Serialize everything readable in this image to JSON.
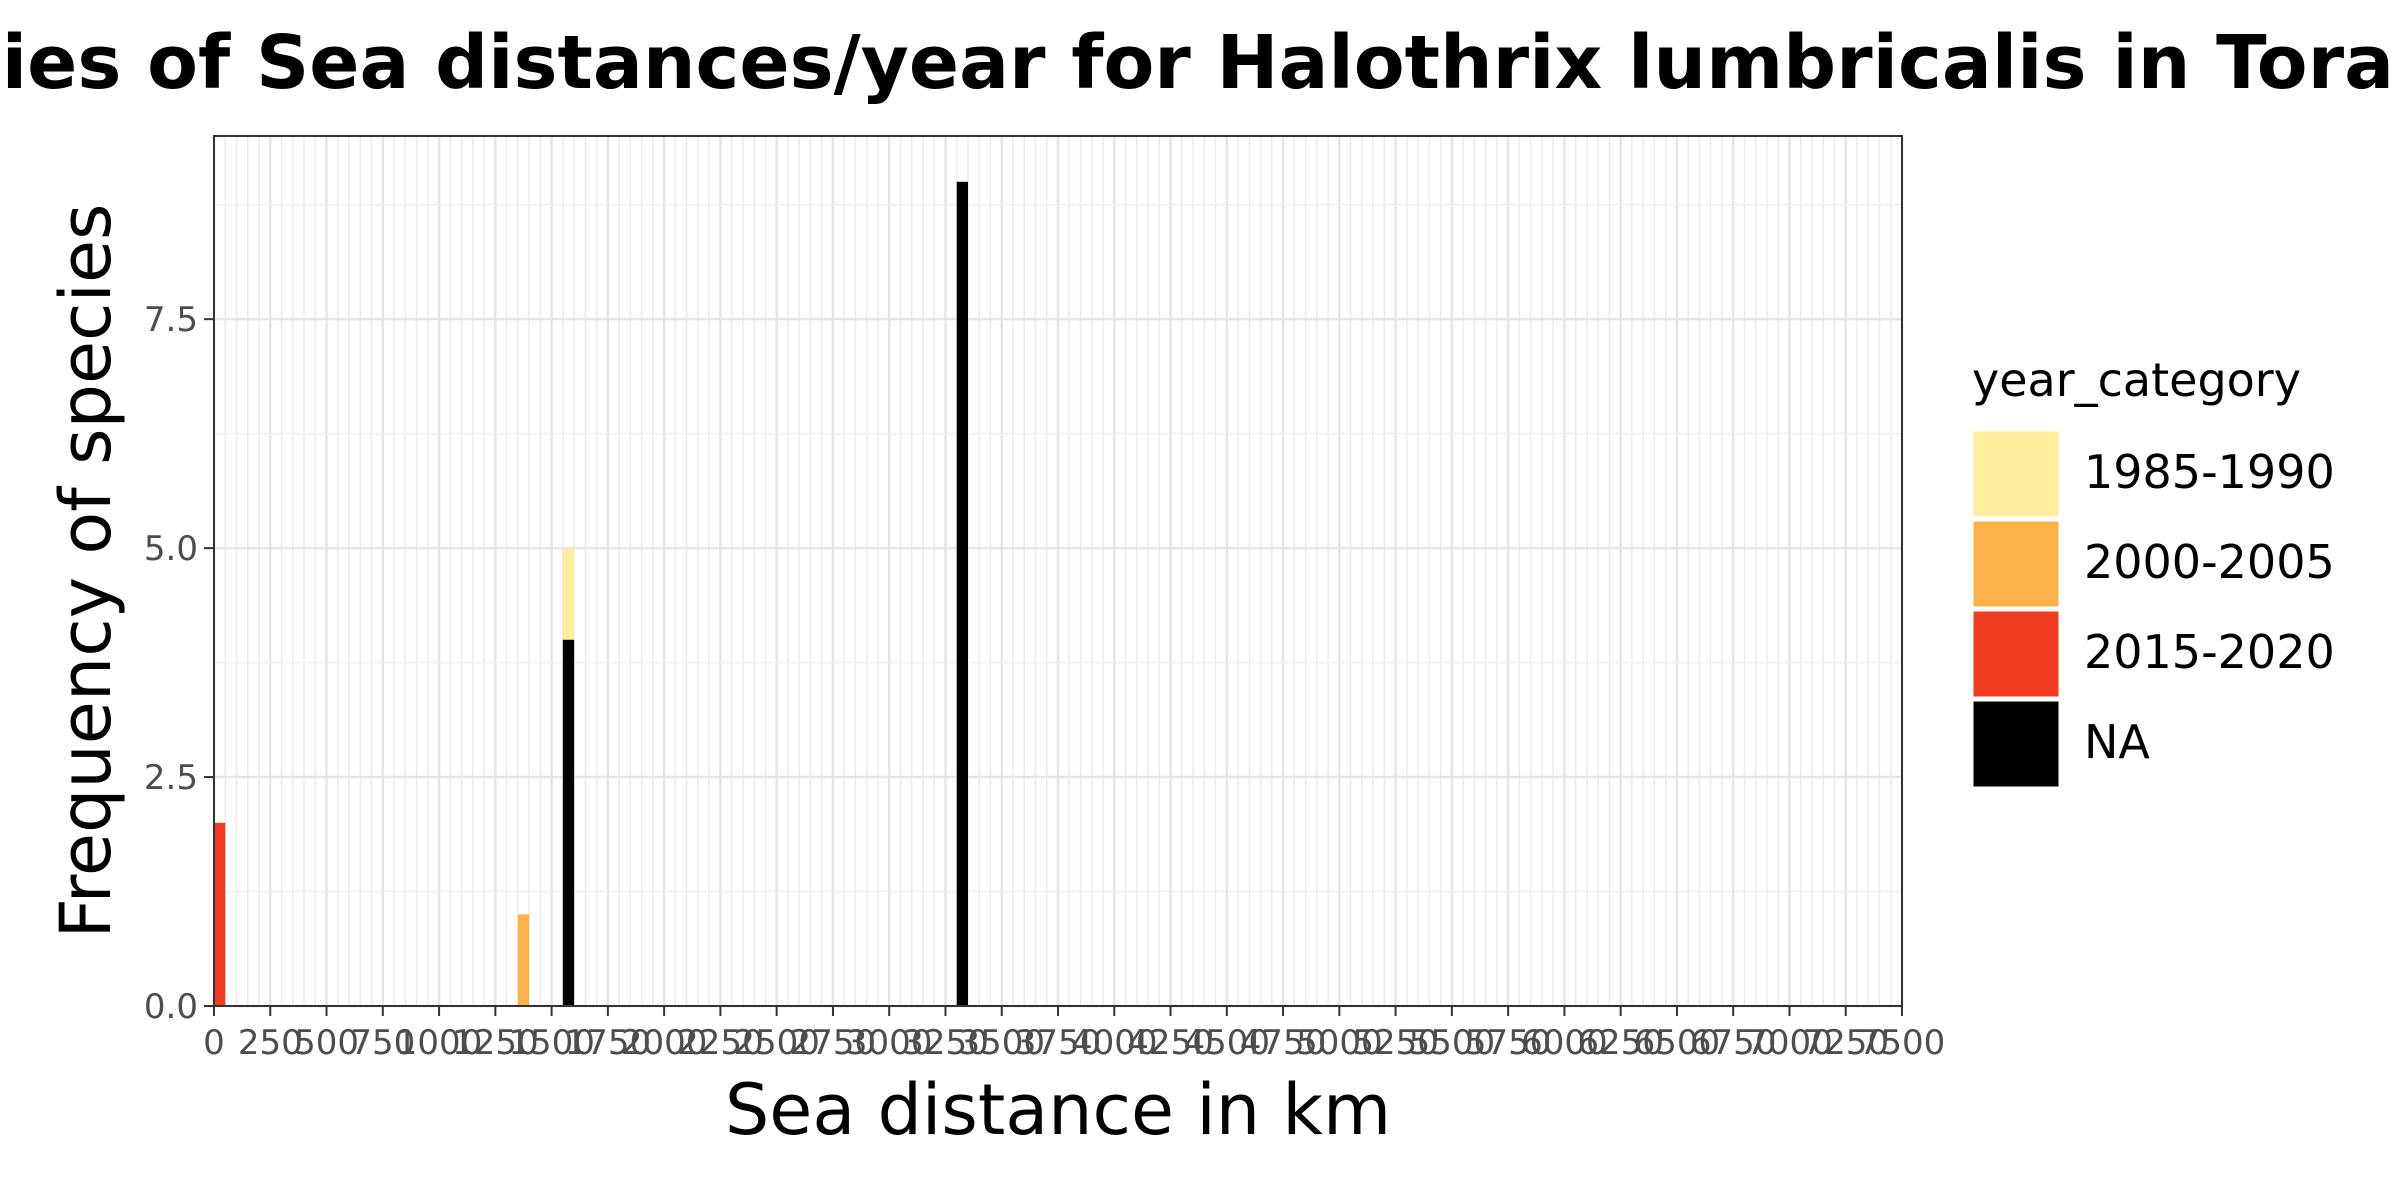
{
  "chart_data": {
    "type": "bar",
    "stacked": true,
    "title": "ncies of Sea distances/year for Halothrix lumbricalis in Toralla",
    "xlabel": "Sea distance in km",
    "ylabel": "Frequency of species",
    "xlim": [
      0,
      7500
    ],
    "ylim": [
      0,
      9.5
    ],
    "x_ticks": [
      0,
      250,
      500,
      750,
      1000,
      1250,
      1500,
      1750,
      2000,
      2250,
      2500,
      2750,
      3000,
      3250,
      3500,
      3750,
      4000,
      4250,
      4500,
      4750,
      5000,
      5250,
      5500,
      5750,
      6000,
      6250,
      6500,
      6750,
      7000,
      7250,
      7500
    ],
    "x_tick_labels": [
      "0",
      "250",
      "500",
      "750",
      "1000",
      "1250",
      "1500",
      "1750",
      "2000",
      "2250",
      "2500",
      "2750",
      "3000",
      "3250",
      "3500",
      "3750",
      "4000",
      "4250",
      "4500",
      "4750",
      "5000",
      "5250",
      "5500",
      "5750",
      "6000",
      "6250",
      "6500",
      "6750",
      "7000",
      "7250",
      "7500"
    ],
    "y_ticks": [
      0,
      2.5,
      5,
      7.5
    ],
    "y_tick_labels": [
      "0.0",
      "2.5",
      "5.0",
      "7.5"
    ],
    "bin_width": 50,
    "grid": true,
    "legend": {
      "title": "year_category",
      "position": "right"
    },
    "series": [
      {
        "name": "1985-1990",
        "color": "#FFEDA0",
        "bins": [
          {
            "x0": 1550,
            "x1": 1600,
            "value": 1
          }
        ]
      },
      {
        "name": "2000-2005",
        "color": "#FEB24C",
        "bins": [
          {
            "x0": 1350,
            "x1": 1400,
            "value": 1
          }
        ]
      },
      {
        "name": "2015-2020",
        "color": "#F03B20",
        "bins": [
          {
            "x0": 0,
            "x1": 50,
            "value": 2
          }
        ]
      },
      {
        "name": "NA",
        "color": "#000000",
        "bins": [
          {
            "x0": 1550,
            "x1": 1600,
            "value": 4
          },
          {
            "x0": 3300,
            "x1": 3350,
            "value": 9
          }
        ]
      }
    ],
    "stack_order": [
      "NA",
      "2015-2020",
      "2000-2005",
      "1985-1990"
    ]
  }
}
